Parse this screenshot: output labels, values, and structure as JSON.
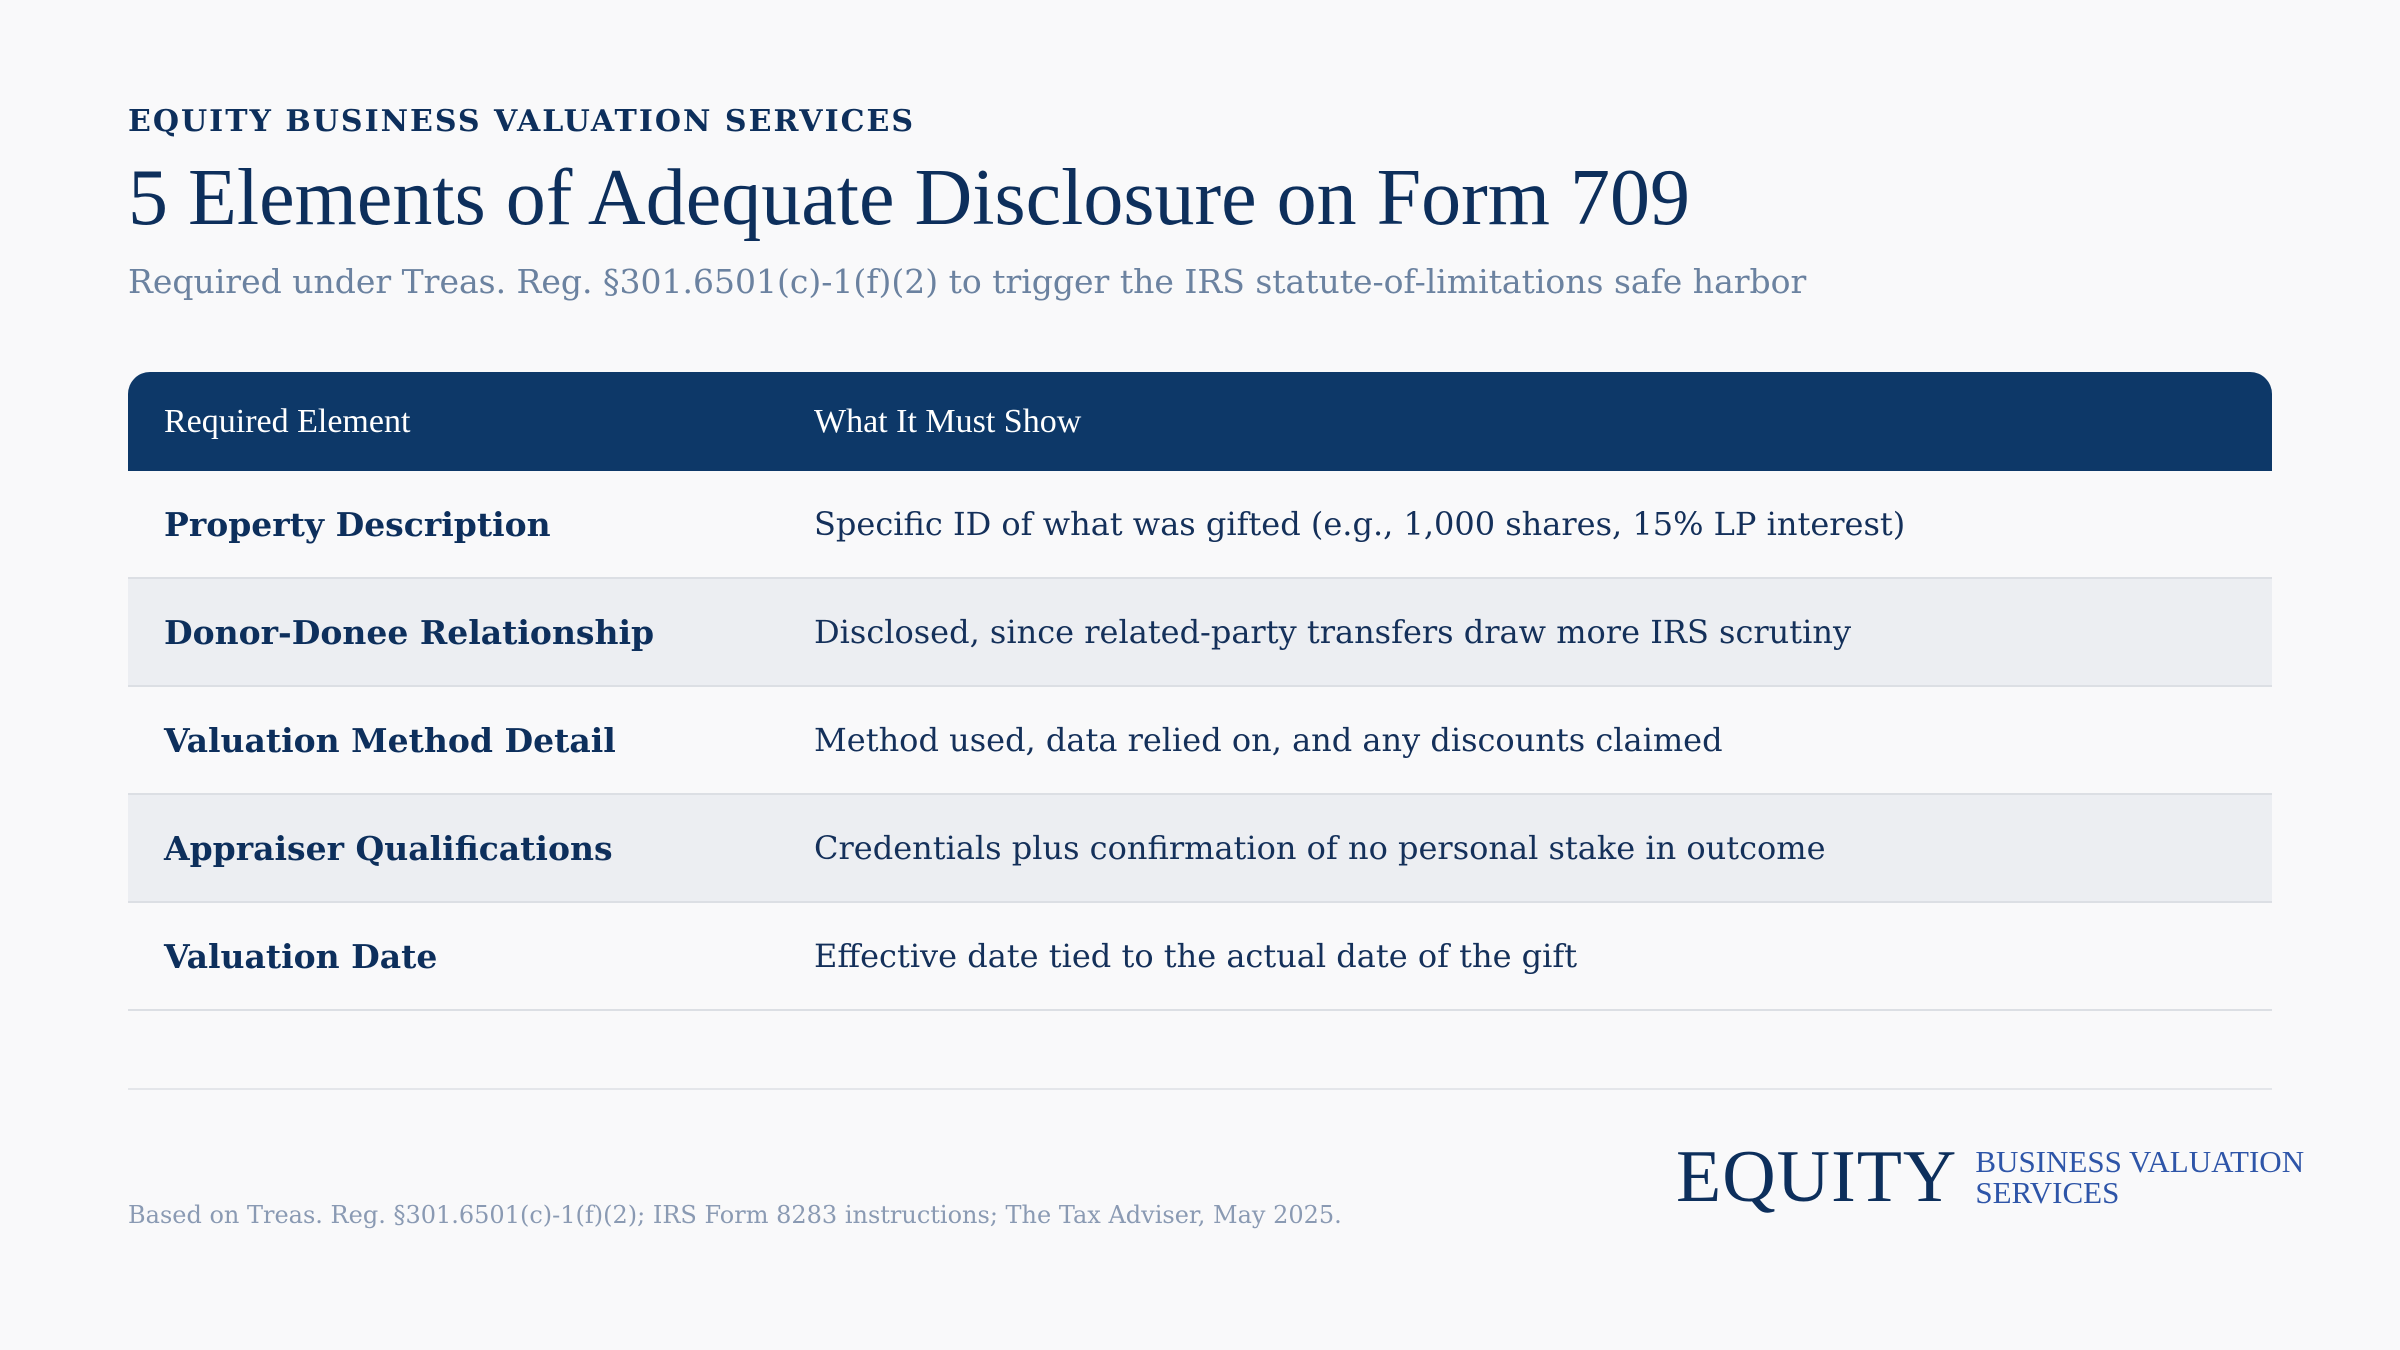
{
  "header": {
    "eyebrow": "EQUITY BUSINESS VALUATION SERVICES",
    "title": "5 Elements of Adequate Disclosure on Form 709",
    "subtitle": "Required under Treas. Reg. §301.6501(c)-1(f)(2) to trigger the IRS statute-of-limitations safe harbor"
  },
  "table": {
    "columns": [
      "Required Element",
      "What It Must Show"
    ],
    "rows": [
      {
        "element": "Property Description",
        "detail": "Specific ID of what was gifted (e.g., 1,000 shares, 15% LP interest)"
      },
      {
        "element": "Donor-Donee Relationship",
        "detail": "Disclosed, since related-party transfers draw more IRS scrutiny"
      },
      {
        "element": "Valuation Method Detail",
        "detail": "Method used, data relied on, and any discounts claimed"
      },
      {
        "element": "Appraiser Qualifications",
        "detail": "Credentials plus confirmation of no personal stake in outcome"
      },
      {
        "element": "Valuation Date",
        "detail": "Effective date tied to the actual date of the gift"
      }
    ]
  },
  "footer": {
    "source": "Based on Treas. Reg. §301.6501(c)-1(f)(2); IRS Form 8283 instructions; The Tax Adviser, May 2025.",
    "logo_word": "EQUITY",
    "logo_line1": "BUSINESS VALUATION",
    "logo_line2": "SERVICES"
  },
  "colors": {
    "navy": "#0d2f5c",
    "header_bg": "#0d3868",
    "alt_row": "#eceef2",
    "accent_blue": "#2e55a8"
  }
}
